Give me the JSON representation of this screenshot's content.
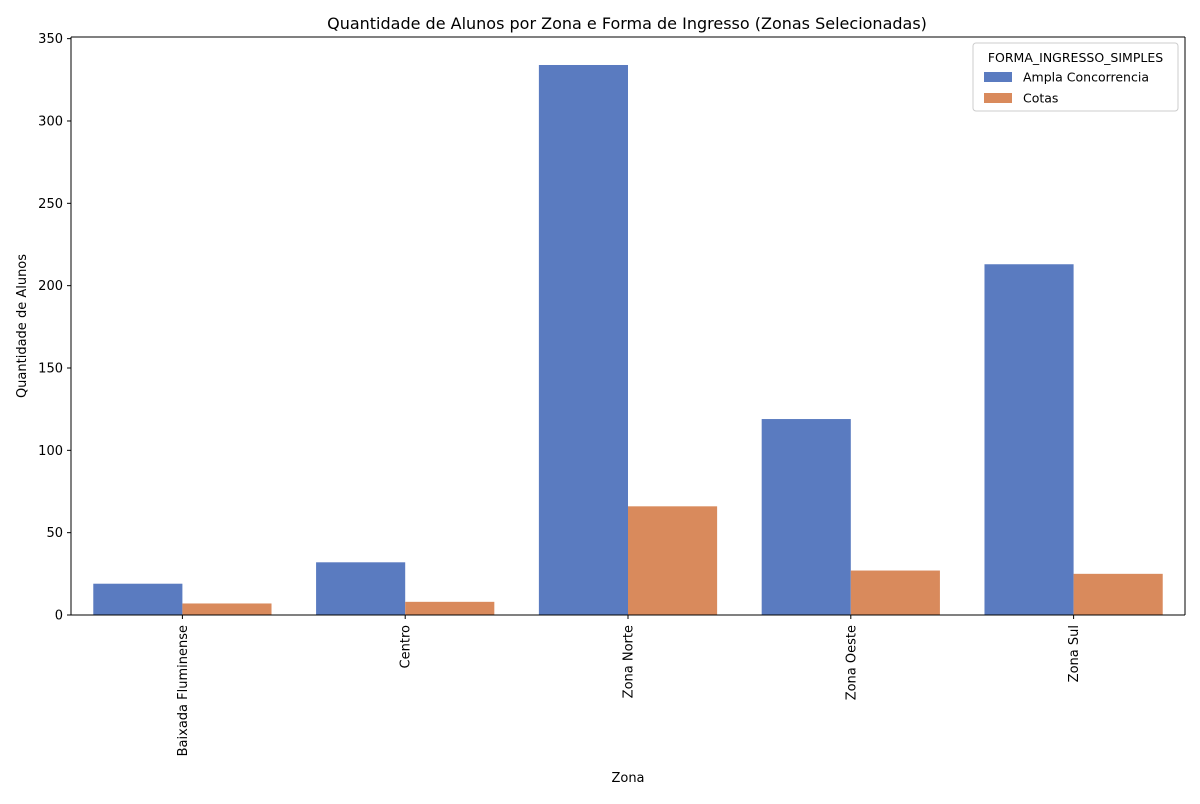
{
  "chart_data": {
    "type": "bar",
    "title": "Quantidade de Alunos por Zona e Forma de Ingresso (Zonas Selecionadas)",
    "xlabel": "Zona",
    "ylabel": "Quantidade de Alunos",
    "categories": [
      "Baixada Fluminense",
      "Centro",
      "Zona Norte",
      "Zona Oeste",
      "Zona Sul"
    ],
    "series": [
      {
        "name": "Ampla Concorrencia",
        "values": [
          19,
          32,
          334,
          119,
          213
        ],
        "color": "#5a7bc0"
      },
      {
        "name": "Cotas",
        "values": [
          7,
          8,
          66,
          27,
          25
        ],
        "color": "#d98a5c"
      }
    ],
    "ylim": [
      0,
      351
    ],
    "yticks": [
      0,
      50,
      100,
      150,
      200,
      250,
      300,
      350
    ],
    "grid": false,
    "legend": {
      "title": "FORMA_INGRESSO_SIMPLES",
      "placement": "top-right"
    }
  }
}
